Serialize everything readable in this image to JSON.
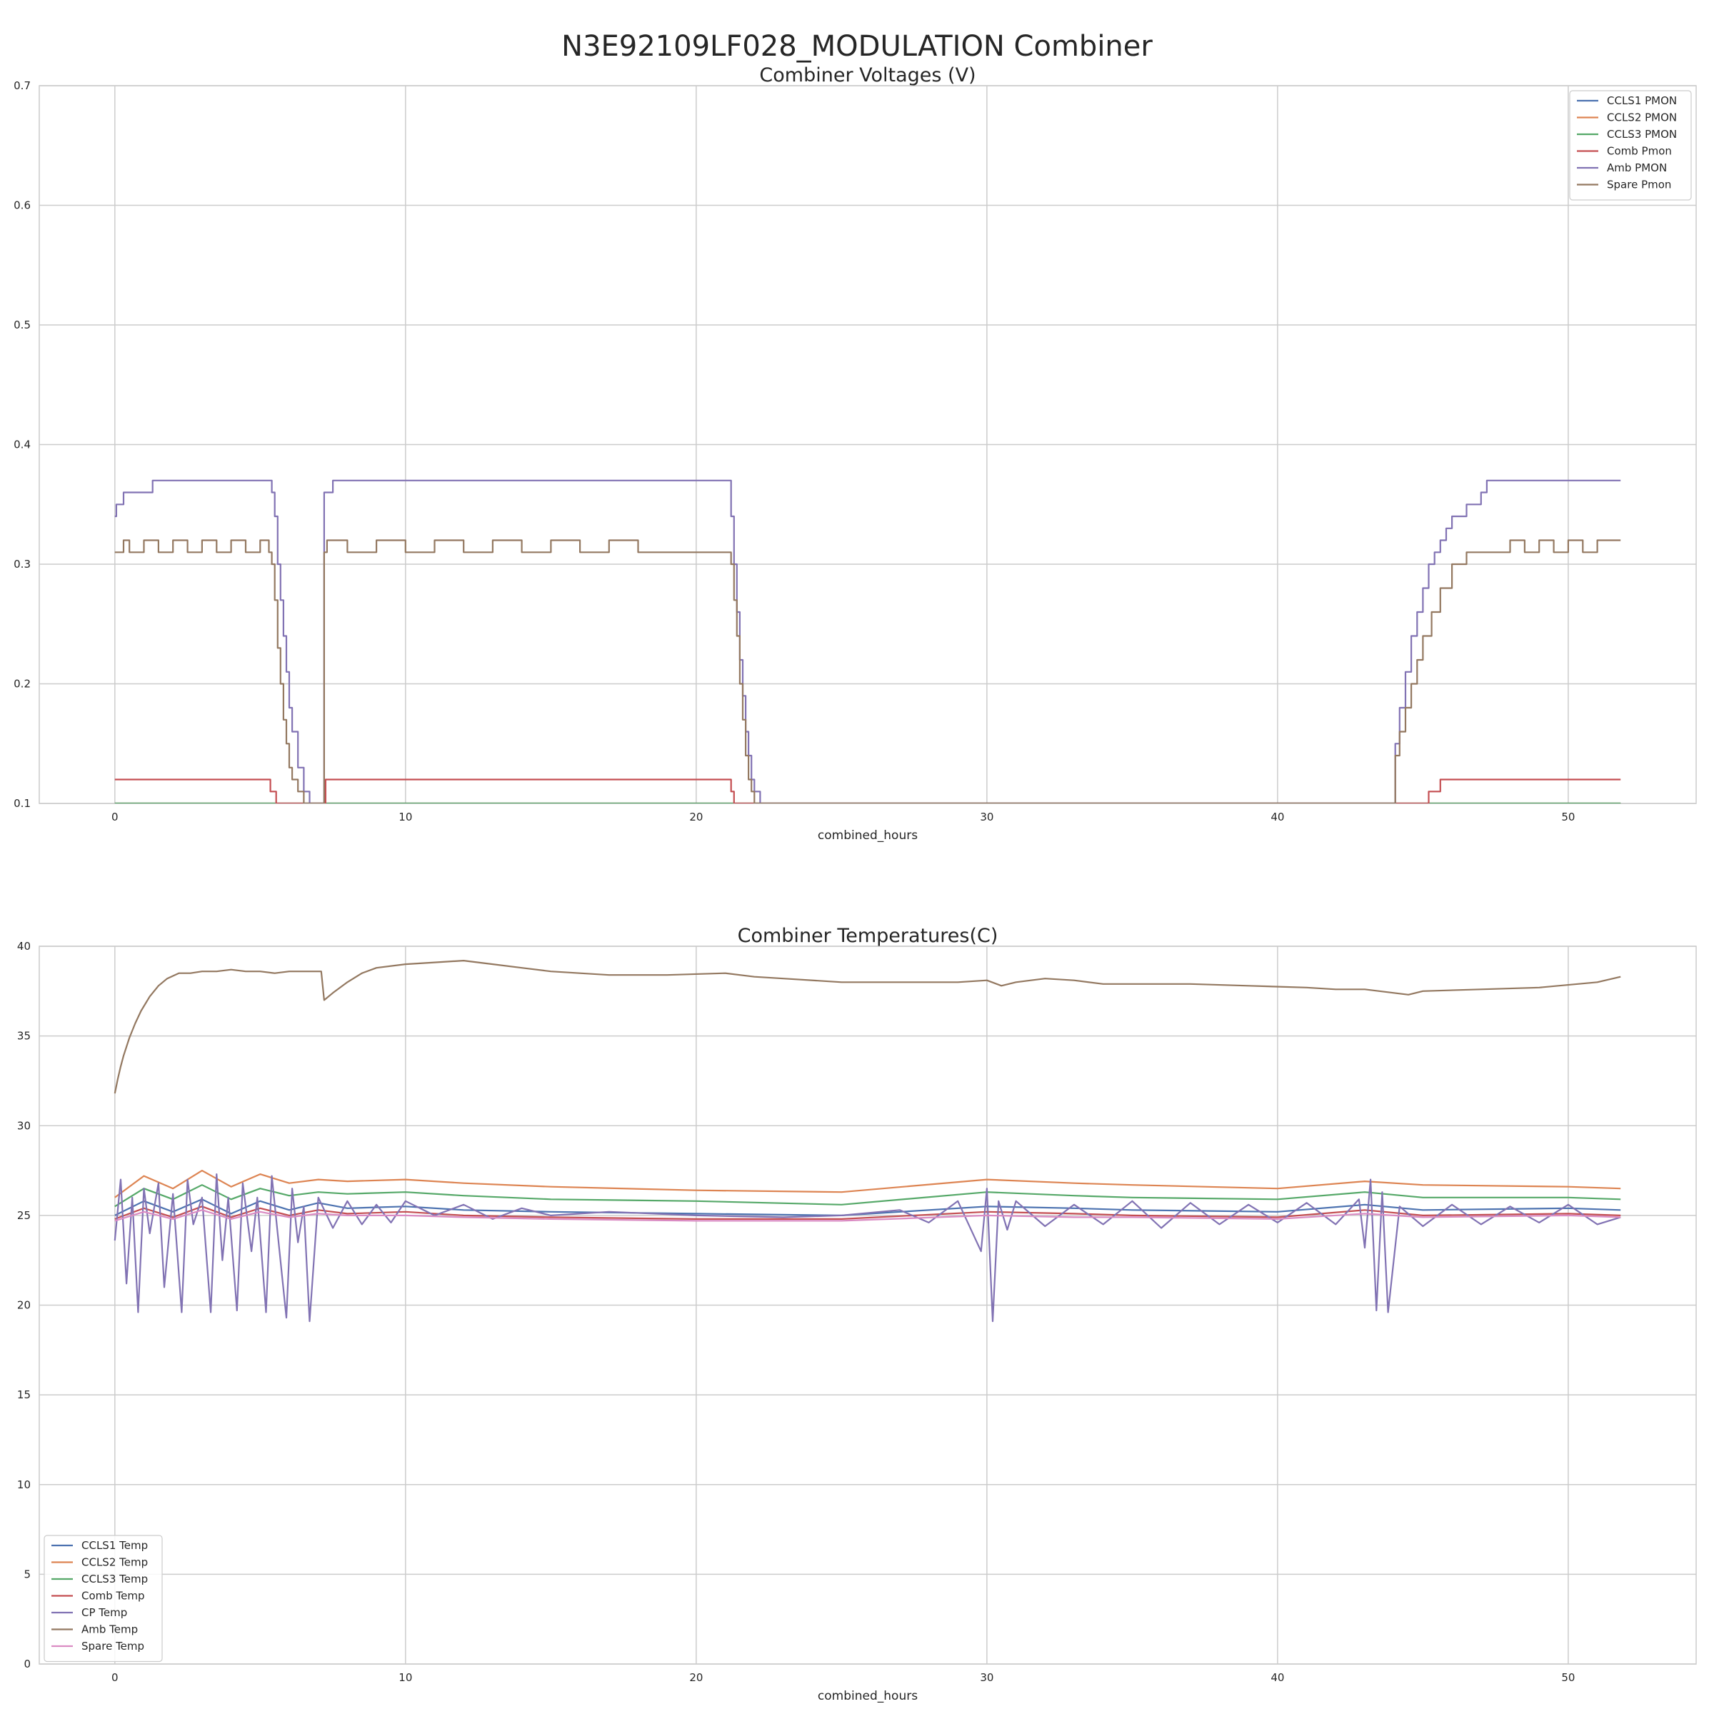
{
  "figure": {
    "title": "N3E92109LF028_MODULATION Combiner"
  },
  "chart_data": [
    {
      "type": "line",
      "title": "Combiner Voltages (V)",
      "xlabel": "combined_hours",
      "ylabel": "",
      "xlim": [
        -2.6,
        54.4
      ],
      "ylim": [
        0.1,
        0.7
      ],
      "xticks": [
        0,
        10,
        20,
        30,
        40,
        50
      ],
      "yticks": [
        0.1,
        0.2,
        0.3,
        0.4,
        0.5,
        0.6,
        0.7
      ],
      "grid": true,
      "legend_position": "top-right",
      "series": [
        {
          "name": "CCLS1 PMON",
          "color": "#4c72b0",
          "x": [
            0,
            51.8
          ],
          "y": [
            0.1,
            0.1
          ]
        },
        {
          "name": "CCLS2 PMON",
          "color": "#dd8452",
          "x": [
            0,
            51.8
          ],
          "y": [
            0.1,
            0.1
          ]
        },
        {
          "name": "CCLS3 PMON",
          "color": "#55a868",
          "x": [
            0,
            51.8
          ],
          "y": [
            0.1,
            0.1
          ]
        },
        {
          "name": "Comb Pmon",
          "color": "#c44e52",
          "x": [
            0,
            5.3,
            5.35,
            5.5,
            5.55,
            7.1,
            7.2,
            7.25,
            21.1,
            21.2,
            21.3,
            44.0,
            45.1,
            45.2,
            45.3,
            45.5,
            45.6,
            45.7,
            51.8
          ],
          "y": [
            0.12,
            0.12,
            0.11,
            0.11,
            0.1,
            0.1,
            0.1,
            0.12,
            0.12,
            0.11,
            0.1,
            0.1,
            0.1,
            0.11,
            0.11,
            0.11,
            0.12,
            0.12,
            0.12
          ]
        },
        {
          "name": "Amb PMON",
          "color": "#8172b3",
          "x": [
            0,
            0.05,
            0.2,
            0.3,
            0.4,
            0.5,
            1.2,
            1.3,
            5.3,
            5.4,
            5.5,
            5.6,
            5.7,
            5.8,
            5.9,
            6.0,
            6.1,
            6.3,
            6.5,
            6.7,
            7.1,
            7.2,
            7.3,
            7.5,
            21.1,
            21.2,
            21.3,
            21.4,
            21.5,
            21.6,
            21.7,
            21.8,
            21.9,
            22.0,
            22.2,
            44.0,
            44.05,
            44.2,
            44.4,
            44.6,
            44.8,
            45.0,
            45.2,
            45.4,
            45.6,
            45.8,
            46.0,
            46.5,
            47.0,
            47.2,
            51.8
          ],
          "y": [
            0.34,
            0.35,
            0.35,
            0.36,
            0.36,
            0.36,
            0.36,
            0.37,
            0.37,
            0.36,
            0.34,
            0.3,
            0.27,
            0.24,
            0.21,
            0.18,
            0.16,
            0.13,
            0.11,
            0.1,
            0.1,
            0.36,
            0.36,
            0.37,
            0.37,
            0.34,
            0.3,
            0.26,
            0.22,
            0.19,
            0.16,
            0.14,
            0.12,
            0.11,
            0.1,
            0.1,
            0.15,
            0.18,
            0.21,
            0.24,
            0.26,
            0.28,
            0.3,
            0.31,
            0.32,
            0.33,
            0.34,
            0.35,
            0.36,
            0.37,
            0.37
          ]
        },
        {
          "name": "Spare Pmon",
          "color": "#937860",
          "x": [
            0,
            0.3,
            0.5,
            1.0,
            1.5,
            2.0,
            2.5,
            3.0,
            3.5,
            4.0,
            4.5,
            5.0,
            5.3,
            5.4,
            5.5,
            5.6,
            5.7,
            5.8,
            5.9,
            6.0,
            6.1,
            6.3,
            6.5,
            7.1,
            7.2,
            7.3,
            8.0,
            9.0,
            10.0,
            11.0,
            12.0,
            13.0,
            14.0,
            15.0,
            16.0,
            17.0,
            18.0,
            18.3,
            21.1,
            21.2,
            21.3,
            21.4,
            21.5,
            21.6,
            21.7,
            21.8,
            21.9,
            22.0,
            44.0,
            44.05,
            44.2,
            44.4,
            44.6,
            44.8,
            45.0,
            45.3,
            45.6,
            46.0,
            46.5,
            47.0,
            47.5,
            48.0,
            48.5,
            49.0,
            49.5,
            50.0,
            50.5,
            51.0,
            51.8
          ],
          "y": [
            0.31,
            0.32,
            0.31,
            0.32,
            0.31,
            0.32,
            0.31,
            0.32,
            0.31,
            0.32,
            0.31,
            0.32,
            0.31,
            0.3,
            0.27,
            0.23,
            0.2,
            0.17,
            0.15,
            0.13,
            0.12,
            0.11,
            0.1,
            0.1,
            0.31,
            0.32,
            0.31,
            0.32,
            0.31,
            0.32,
            0.31,
            0.32,
            0.31,
            0.32,
            0.31,
            0.32,
            0.31,
            0.31,
            0.31,
            0.3,
            0.27,
            0.24,
            0.2,
            0.17,
            0.14,
            0.12,
            0.11,
            0.1,
            0.1,
            0.14,
            0.16,
            0.18,
            0.2,
            0.22,
            0.24,
            0.26,
            0.28,
            0.3,
            0.31,
            0.31,
            0.31,
            0.32,
            0.31,
            0.32,
            0.31,
            0.32,
            0.31,
            0.32,
            0.32
          ]
        }
      ]
    },
    {
      "type": "line",
      "title": "Combiner Temperatures(C)",
      "xlabel": "combined_hours",
      "ylabel": "",
      "xlim": [
        -2.6,
        54.4
      ],
      "ylim": [
        0,
        40
      ],
      "xticks": [
        0,
        10,
        20,
        30,
        40,
        50
      ],
      "yticks": [
        0,
        5,
        10,
        15,
        20,
        25,
        30,
        35,
        40
      ],
      "grid": true,
      "legend_position": "bottom-left",
      "series": [
        {
          "name": "CCLS1 Temp",
          "color": "#4c72b0",
          "x": [
            0,
            1,
            2,
            3,
            4,
            5,
            6,
            7,
            8,
            10,
            12,
            15,
            20,
            25,
            30,
            33,
            35,
            40,
            43,
            45,
            50,
            51.8
          ],
          "y": [
            25.0,
            25.8,
            25.2,
            25.9,
            25.1,
            25.8,
            25.3,
            25.7,
            25.4,
            25.5,
            25.3,
            25.2,
            25.1,
            25.0,
            25.5,
            25.4,
            25.3,
            25.2,
            25.6,
            25.3,
            25.4,
            25.3
          ]
        },
        {
          "name": "CCLS2 Temp",
          "color": "#dd8452",
          "x": [
            0,
            1,
            2,
            3,
            4,
            5,
            6,
            7,
            8,
            10,
            12,
            15,
            20,
            25,
            30,
            33,
            35,
            40,
            43,
            45,
            50,
            51.8
          ],
          "y": [
            26.0,
            27.2,
            26.5,
            27.5,
            26.6,
            27.3,
            26.8,
            27.0,
            26.9,
            27.0,
            26.8,
            26.6,
            26.4,
            26.3,
            27.0,
            26.8,
            26.7,
            26.5,
            26.9,
            26.7,
            26.6,
            26.5
          ]
        },
        {
          "name": "CCLS3 Temp",
          "color": "#55a868",
          "x": [
            0,
            1,
            2,
            3,
            4,
            5,
            6,
            7,
            8,
            10,
            12,
            15,
            20,
            25,
            30,
            33,
            35,
            40,
            43,
            45,
            50,
            51.8
          ],
          "y": [
            25.5,
            26.5,
            25.9,
            26.7,
            25.9,
            26.5,
            26.1,
            26.3,
            26.2,
            26.3,
            26.1,
            25.9,
            25.8,
            25.6,
            26.3,
            26.1,
            26.0,
            25.9,
            26.3,
            26.0,
            26.0,
            25.9
          ]
        },
        {
          "name": "Comb Temp",
          "color": "#c44e52",
          "x": [
            0,
            1,
            2,
            3,
            4,
            5,
            6,
            7,
            8,
            10,
            12,
            15,
            20,
            25,
            30,
            33,
            35,
            40,
            43,
            45,
            50,
            51.8
          ],
          "y": [
            24.8,
            25.4,
            24.9,
            25.5,
            24.9,
            25.4,
            25.0,
            25.3,
            25.1,
            25.2,
            25.0,
            24.9,
            24.8,
            24.8,
            25.2,
            25.1,
            25.0,
            24.9,
            25.3,
            25.0,
            25.1,
            25.0
          ]
        },
        {
          "name": "CP Temp",
          "color": "#8172b3",
          "x": [
            0,
            0.2,
            0.4,
            0.6,
            0.8,
            1.0,
            1.2,
            1.5,
            1.7,
            2.0,
            2.3,
            2.5,
            2.7,
            3.0,
            3.3,
            3.5,
            3.7,
            3.9,
            4.2,
            4.4,
            4.7,
            4.9,
            5.2,
            5.4,
            5.6,
            5.9,
            6.1,
            6.3,
            6.5,
            6.7,
            7.0,
            7.5,
            8,
            8.5,
            9,
            9.5,
            10,
            11,
            12,
            13,
            14,
            15,
            17,
            20,
            23,
            25,
            27,
            28,
            29,
            29.8,
            30.0,
            30.2,
            30.4,
            30.7,
            31,
            32,
            33,
            34,
            35,
            36,
            37,
            38,
            39,
            40,
            41,
            42,
            42.8,
            43.0,
            43.2,
            43.4,
            43.6,
            43.8,
            44.2,
            45,
            46,
            47,
            48,
            49,
            50,
            51,
            51.8
          ],
          "y": [
            23.6,
            27.0,
            21.2,
            26.0,
            19.6,
            26.5,
            24.0,
            26.8,
            21.0,
            26.2,
            19.6,
            27.0,
            24.5,
            26.0,
            19.6,
            27.3,
            22.5,
            26.0,
            19.7,
            26.8,
            23.0,
            26.0,
            19.6,
            27.2,
            24.0,
            19.3,
            26.5,
            23.5,
            25.5,
            19.1,
            26.0,
            24.3,
            25.8,
            24.5,
            25.6,
            24.6,
            25.8,
            25.0,
            25.6,
            24.8,
            25.4,
            25.0,
            25.2,
            25.0,
            24.9,
            25.0,
            25.3,
            24.6,
            25.8,
            23.0,
            26.5,
            19.1,
            25.8,
            24.2,
            25.8,
            24.4,
            25.6,
            24.5,
            25.8,
            24.3,
            25.7,
            24.5,
            25.6,
            24.6,
            25.7,
            24.5,
            25.9,
            23.2,
            27.0,
            19.7,
            26.3,
            19.6,
            25.5,
            24.4,
            25.6,
            24.5,
            25.5,
            24.6,
            25.6,
            24.5,
            24.9
          ]
        },
        {
          "name": "Amb Temp",
          "color": "#937860",
          "x": [
            0,
            0.1,
            0.2,
            0.3,
            0.5,
            0.7,
            0.9,
            1.2,
            1.5,
            1.8,
            2.2,
            2.6,
            3,
            3.5,
            4,
            4.5,
            5,
            5.5,
            6,
            6.5,
            7.1,
            7.2,
            7.5,
            8,
            8.5,
            9,
            10,
            11,
            12,
            13,
            14,
            15,
            17,
            19,
            21,
            22,
            23,
            25,
            27,
            29,
            30,
            30.5,
            31,
            32,
            33,
            34,
            35,
            37,
            39,
            41,
            42,
            43,
            44,
            44.5,
            45,
            47,
            49,
            51,
            51.8
          ],
          "y": [
            31.8,
            32.6,
            33.3,
            33.9,
            34.9,
            35.7,
            36.4,
            37.2,
            37.8,
            38.2,
            38.5,
            38.5,
            38.6,
            38.6,
            38.7,
            38.6,
            38.6,
            38.5,
            38.6,
            38.6,
            38.6,
            37.0,
            37.4,
            38.0,
            38.5,
            38.8,
            39.0,
            39.1,
            39.2,
            39.0,
            38.8,
            38.6,
            38.4,
            38.4,
            38.5,
            38.3,
            38.2,
            38.0,
            38.0,
            38.0,
            38.1,
            37.8,
            38.0,
            38.2,
            38.1,
            37.9,
            37.9,
            37.9,
            37.8,
            37.7,
            37.6,
            37.6,
            37.4,
            37.3,
            37.5,
            37.6,
            37.7,
            38.0,
            38.3
          ]
        },
        {
          "name": "Spare Temp",
          "color": "#da8bc3",
          "x": [
            0,
            1,
            2,
            3,
            4,
            5,
            6,
            7,
            8,
            10,
            12,
            15,
            20,
            25,
            30,
            33,
            35,
            40,
            43,
            45,
            50,
            51.8
          ],
          "y": [
            24.7,
            25.2,
            24.8,
            25.3,
            24.8,
            25.2,
            24.9,
            25.1,
            25.0,
            25.0,
            24.9,
            24.8,
            24.7,
            24.7,
            25.0,
            24.9,
            24.9,
            24.8,
            25.1,
            24.9,
            25.0,
            24.9
          ]
        }
      ]
    }
  ]
}
